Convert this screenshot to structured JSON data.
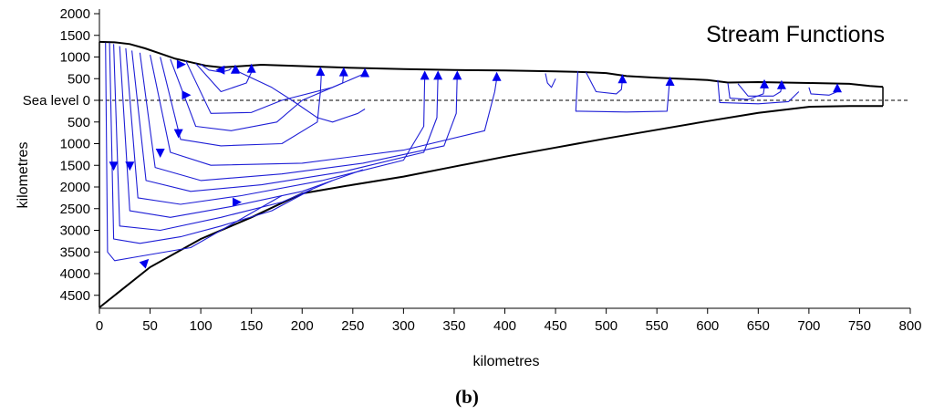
{
  "chart_data": {
    "type": "line",
    "title": "Stream Functions",
    "panel_label": "(b)",
    "xlabel": "kilometres",
    "ylabel": "kilometres",
    "x_ticks": [
      "0",
      "50",
      "100",
      "150",
      "200",
      "250",
      "300",
      "350",
      "400",
      "450",
      "500",
      "550",
      "600",
      "650",
      "700",
      "750",
      "800"
    ],
    "y_ticks": [
      "2000",
      "1500",
      "1000",
      "500",
      "Sea level 0",
      "500",
      "1000",
      "1500",
      "2000",
      "2500",
      "3000",
      "3500",
      "4000",
      "4500"
    ],
    "xlim": [
      0,
      800
    ],
    "ylim": [
      -4800,
      2000
    ],
    "sea_level": 0,
    "colors": {
      "boundary": "#000000",
      "streamlines": "#1f1fd6",
      "arrows": "#0000ee",
      "sea_level": "#000000"
    },
    "top_surface": [
      [
        0,
        1350
      ],
      [
        15,
        1340
      ],
      [
        30,
        1300
      ],
      [
        45,
        1200
      ],
      [
        60,
        1080
      ],
      [
        75,
        960
      ],
      [
        90,
        880
      ],
      [
        105,
        800
      ],
      [
        120,
        760
      ],
      [
        140,
        790
      ],
      [
        160,
        820
      ],
      [
        200,
        790
      ],
      [
        250,
        750
      ],
      [
        300,
        720
      ],
      [
        350,
        700
      ],
      [
        400,
        690
      ],
      [
        450,
        670
      ],
      [
        480,
        650
      ],
      [
        500,
        630
      ],
      [
        520,
        560
      ],
      [
        550,
        520
      ],
      [
        600,
        470
      ],
      [
        620,
        410
      ],
      [
        650,
        420
      ],
      [
        700,
        400
      ],
      [
        740,
        380
      ],
      [
        760,
        330
      ],
      [
        773,
        310
      ]
    ],
    "bottom_surface": [
      [
        0,
        -4780
      ],
      [
        50,
        -3850
      ],
      [
        100,
        -3200
      ],
      [
        150,
        -2700
      ],
      [
        200,
        -2150
      ],
      [
        250,
        -1950
      ],
      [
        300,
        -1760
      ],
      [
        350,
        -1530
      ],
      [
        400,
        -1300
      ],
      [
        450,
        -1090
      ],
      [
        500,
        -880
      ],
      [
        550,
        -680
      ],
      [
        600,
        -480
      ],
      [
        650,
        -290
      ],
      [
        700,
        -150
      ],
      [
        740,
        -130
      ],
      [
        773,
        -130
      ]
    ],
    "streamlines": [
      [
        [
          6,
          1330
        ],
        [
          8,
          -3500
        ],
        [
          15,
          -3700
        ],
        [
          40,
          -3600
        ],
        [
          90,
          -3400
        ],
        [
          120,
          -3000
        ],
        [
          150,
          -2600
        ],
        [
          180,
          -2200
        ]
      ],
      [
        [
          10,
          1330
        ],
        [
          14,
          -3200
        ],
        [
          40,
          -3300
        ],
        [
          80,
          -3150
        ],
        [
          120,
          -2900
        ],
        [
          170,
          -2550
        ],
        [
          210,
          -2050
        ]
      ],
      [
        [
          14,
          1300
        ],
        [
          20,
          -2900
        ],
        [
          60,
          -3000
        ],
        [
          120,
          -2700
        ],
        [
          180,
          -2350
        ],
        [
          230,
          -1850
        ]
      ],
      [
        [
          20,
          1250
        ],
        [
          30,
          -2550
        ],
        [
          70,
          -2700
        ],
        [
          130,
          -2450
        ],
        [
          200,
          -2100
        ],
        [
          260,
          -1600
        ]
      ],
      [
        [
          26,
          1200
        ],
        [
          38,
          -2250
        ],
        [
          80,
          -2400
        ],
        [
          140,
          -2200
        ],
        [
          220,
          -1850
        ],
        [
          300,
          -1380
        ],
        [
          320,
          -600
        ],
        [
          321,
          600
        ]
      ],
      [
        [
          32,
          1150
        ],
        [
          46,
          -1850
        ],
        [
          90,
          -2100
        ],
        [
          160,
          -1950
        ],
        [
          240,
          -1650
        ],
        [
          320,
          -1200
        ],
        [
          333,
          -400
        ],
        [
          334,
          600
        ]
      ],
      [
        [
          40,
          1100
        ],
        [
          55,
          -1550
        ],
        [
          100,
          -1850
        ],
        [
          180,
          -1700
        ],
        [
          260,
          -1450
        ],
        [
          340,
          -1050
        ],
        [
          352,
          -300
        ],
        [
          353,
          620
        ]
      ],
      [
        [
          50,
          1050
        ],
        [
          70,
          -1200
        ],
        [
          110,
          -1500
        ],
        [
          200,
          -1450
        ],
        [
          300,
          -1150
        ],
        [
          380,
          -700
        ],
        [
          390,
          200
        ],
        [
          392,
          500
        ]
      ],
      [
        [
          60,
          1000
        ],
        [
          80,
          -900
        ],
        [
          120,
          -1050
        ],
        [
          180,
          -1000
        ],
        [
          215,
          -500
        ],
        [
          218,
          200
        ],
        [
          219,
          650
        ]
      ],
      [
        [
          70,
          950
        ],
        [
          95,
          -600
        ],
        [
          130,
          -700
        ],
        [
          175,
          -500
        ],
        [
          200,
          0
        ],
        [
          240,
          400
        ],
        [
          241,
          660
        ]
      ],
      [
        [
          85,
          920
        ],
        [
          110,
          -300
        ],
        [
          150,
          -280
        ],
        [
          180,
          0
        ],
        [
          230,
          300
        ],
        [
          262,
          620
        ],
        [
          263,
          640
        ]
      ],
      [
        [
          95,
          850
        ],
        [
          120,
          200
        ],
        [
          145,
          400
        ],
        [
          150,
          650
        ],
        [
          150,
          720
        ]
      ],
      [
        [
          135,
          780
        ],
        [
          138,
          650
        ],
        [
          170,
          300
        ],
        [
          190,
          0
        ],
        [
          215,
          -400
        ],
        [
          230,
          -500
        ],
        [
          255,
          -300
        ],
        [
          262,
          -200
        ]
      ],
      [
        [
          100,
          830
        ],
        [
          108,
          700
        ],
        [
          120,
          650
        ],
        [
          128,
          700
        ],
        [
          130,
          740
        ]
      ],
      [
        [
          472,
          670
        ],
        [
          470,
          -250
        ],
        [
          520,
          -270
        ],
        [
          560,
          -250
        ],
        [
          562,
          300
        ],
        [
          563,
          520
        ]
      ],
      [
        [
          480,
          650
        ],
        [
          490,
          200
        ],
        [
          510,
          150
        ],
        [
          515,
          250
        ],
        [
          516,
          480
        ]
      ],
      [
        [
          610,
          470
        ],
        [
          612,
          -50
        ],
        [
          650,
          -80
        ],
        [
          680,
          -30
        ],
        [
          690,
          200
        ]
      ],
      [
        [
          620,
          400
        ],
        [
          622,
          50
        ],
        [
          640,
          20
        ],
        [
          655,
          150
        ],
        [
          656,
          300
        ]
      ],
      [
        [
          630,
          380
        ],
        [
          640,
          100
        ],
        [
          665,
          100
        ],
        [
          672,
          200
        ],
        [
          673,
          310
        ]
      ],
      [
        [
          700,
          300
        ],
        [
          702,
          150
        ],
        [
          720,
          120
        ],
        [
          728,
          200
        ],
        [
          730,
          290
        ]
      ],
      [
        [
          440,
          620
        ],
        [
          442,
          400
        ],
        [
          446,
          300
        ],
        [
          450,
          500
        ]
      ]
    ],
    "arrows": [
      {
        "x": 14,
        "y": -1500,
        "dir": "down"
      },
      {
        "x": 30,
        "y": -1500,
        "dir": "down"
      },
      {
        "x": 60,
        "y": -1200,
        "dir": "down"
      },
      {
        "x": 78,
        "y": -750,
        "dir": "down"
      },
      {
        "x": 85,
        "y": 120,
        "dir": "right"
      },
      {
        "x": 80,
        "y": 830,
        "dir": "right"
      },
      {
        "x": 120,
        "y": 700,
        "dir": "left"
      },
      {
        "x": 134,
        "y": 700,
        "dir": "up"
      },
      {
        "x": 150,
        "y": 720,
        "dir": "up"
      },
      {
        "x": 218,
        "y": 650,
        "dir": "up"
      },
      {
        "x": 241,
        "y": 640,
        "dir": "up"
      },
      {
        "x": 262,
        "y": 620,
        "dir": "up"
      },
      {
        "x": 321,
        "y": 560,
        "dir": "up"
      },
      {
        "x": 334,
        "y": 560,
        "dir": "up"
      },
      {
        "x": 353,
        "y": 560,
        "dir": "up"
      },
      {
        "x": 392,
        "y": 530,
        "dir": "up"
      },
      {
        "x": 516,
        "y": 480,
        "dir": "up"
      },
      {
        "x": 563,
        "y": 420,
        "dir": "up"
      },
      {
        "x": 656,
        "y": 360,
        "dir": "up"
      },
      {
        "x": 673,
        "y": 340,
        "dir": "up"
      },
      {
        "x": 728,
        "y": 270,
        "dir": "up"
      },
      {
        "x": 45,
        "y": -3750,
        "dir": "upright"
      },
      {
        "x": 135,
        "y": -2350,
        "dir": "right"
      }
    ]
  }
}
